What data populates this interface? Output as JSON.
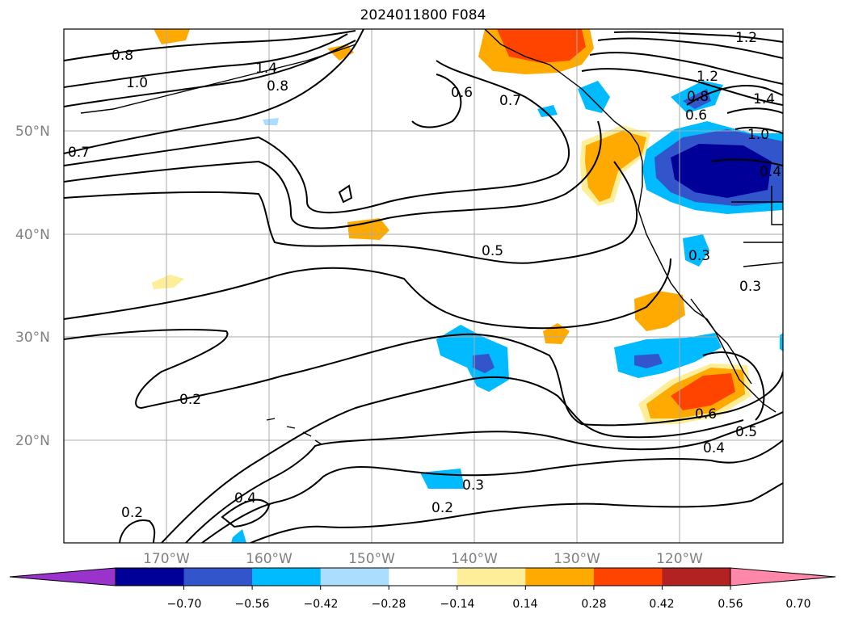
{
  "title": "2024011800 F084",
  "map": {
    "lat_labels": [
      "50°N",
      "40°N",
      "30°N",
      "20°N"
    ],
    "lon_labels": [
      "170°W",
      "160°W",
      "150°W",
      "140°W",
      "130°W",
      "120°W"
    ],
    "contour_labels": [
      "0.8",
      "1.0",
      "1.4",
      "0.8",
      "0.7",
      "0.6",
      "0.7",
      "1.2",
      "1.2",
      "0.8",
      "0.6",
      "1.4",
      "1.0",
      "0.4",
      "0.5",
      "0.3",
      "0.3",
      "0.2",
      "0.6",
      "0.5",
      "0.4",
      "0.3",
      "0.2",
      "0.4",
      "0.2"
    ]
  },
  "colorbar": {
    "tick_labels": [
      "−0.70",
      "−0.56",
      "−0.42",
      "−0.28",
      "−0.14",
      "0.14",
      "0.28",
      "0.42",
      "0.56",
      "0.70"
    ],
    "colors": [
      "#9933cc",
      "#000099",
      "#3355cc",
      "#00bbff",
      "#aaddff",
      "#ffffff",
      "#ffee99",
      "#ffaa00",
      "#ff4400",
      "#b22222",
      "#ff88aa"
    ]
  }
}
